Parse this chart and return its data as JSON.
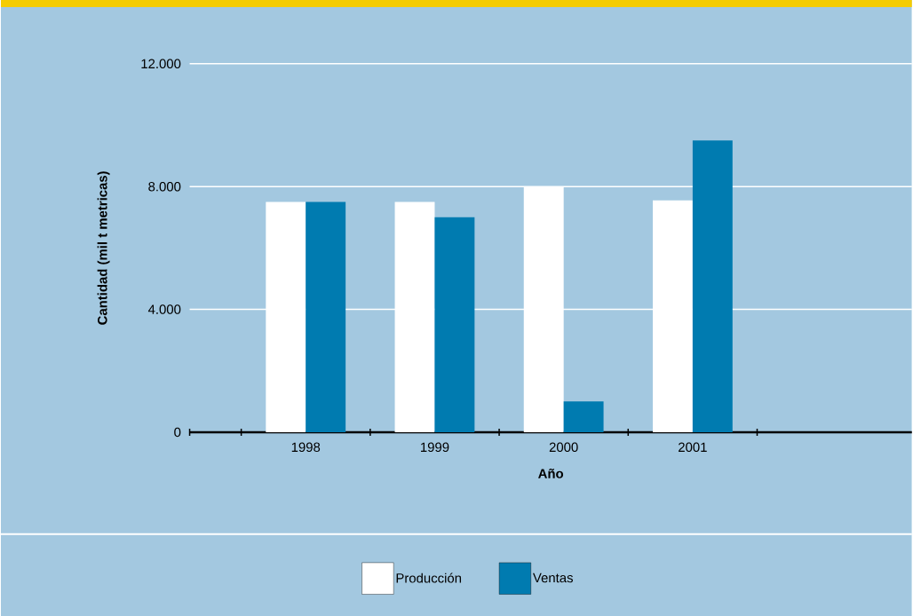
{
  "chart_data": {
    "type": "bar",
    "xlabel": "Año",
    "ylabel": "Cantidad (mil t metricas)",
    "categories": [
      "1998",
      "1999",
      "2000",
      "2001"
    ],
    "series": [
      {
        "name": "Producción",
        "color": "#ffffff",
        "values": [
          7500,
          7500,
          8000,
          7550
        ]
      },
      {
        "name": "Ventas",
        "color": "#007bb0",
        "values": [
          7500,
          7000,
          1000,
          9500
        ]
      }
    ],
    "ylim": [
      0,
      12000
    ],
    "yticks": [
      0,
      {
        "value": 4000,
        "label": "4.000"
      },
      {
        "value": 8000,
        "label": "8.000"
      },
      {
        "value": 12000,
        "label": "12.000"
      }
    ],
    "grid": "y",
    "legend": "bottom"
  }
}
